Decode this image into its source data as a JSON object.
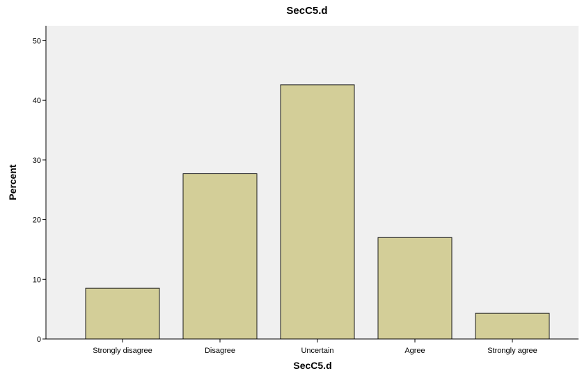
{
  "chart_data": {
    "type": "bar",
    "title": "SecC5.d",
    "xlabel": "SecC5.d",
    "ylabel": "Percent",
    "categories": [
      "Strongly disagree",
      "Disagree",
      "Uncertain",
      "Agree",
      "Strongly agree"
    ],
    "values": [
      8.5,
      27.7,
      42.6,
      17.0,
      4.3
    ],
    "ylim": [
      0,
      52.5
    ],
    "yticks": [
      0,
      10,
      20,
      30,
      40,
      50
    ],
    "grid": false,
    "legend": "none",
    "colors": {
      "bar_fill": "#d3ce98",
      "bar_stroke": "#1a1a1a",
      "plot_background": "#f0f0f0",
      "axis": "#000000"
    }
  }
}
